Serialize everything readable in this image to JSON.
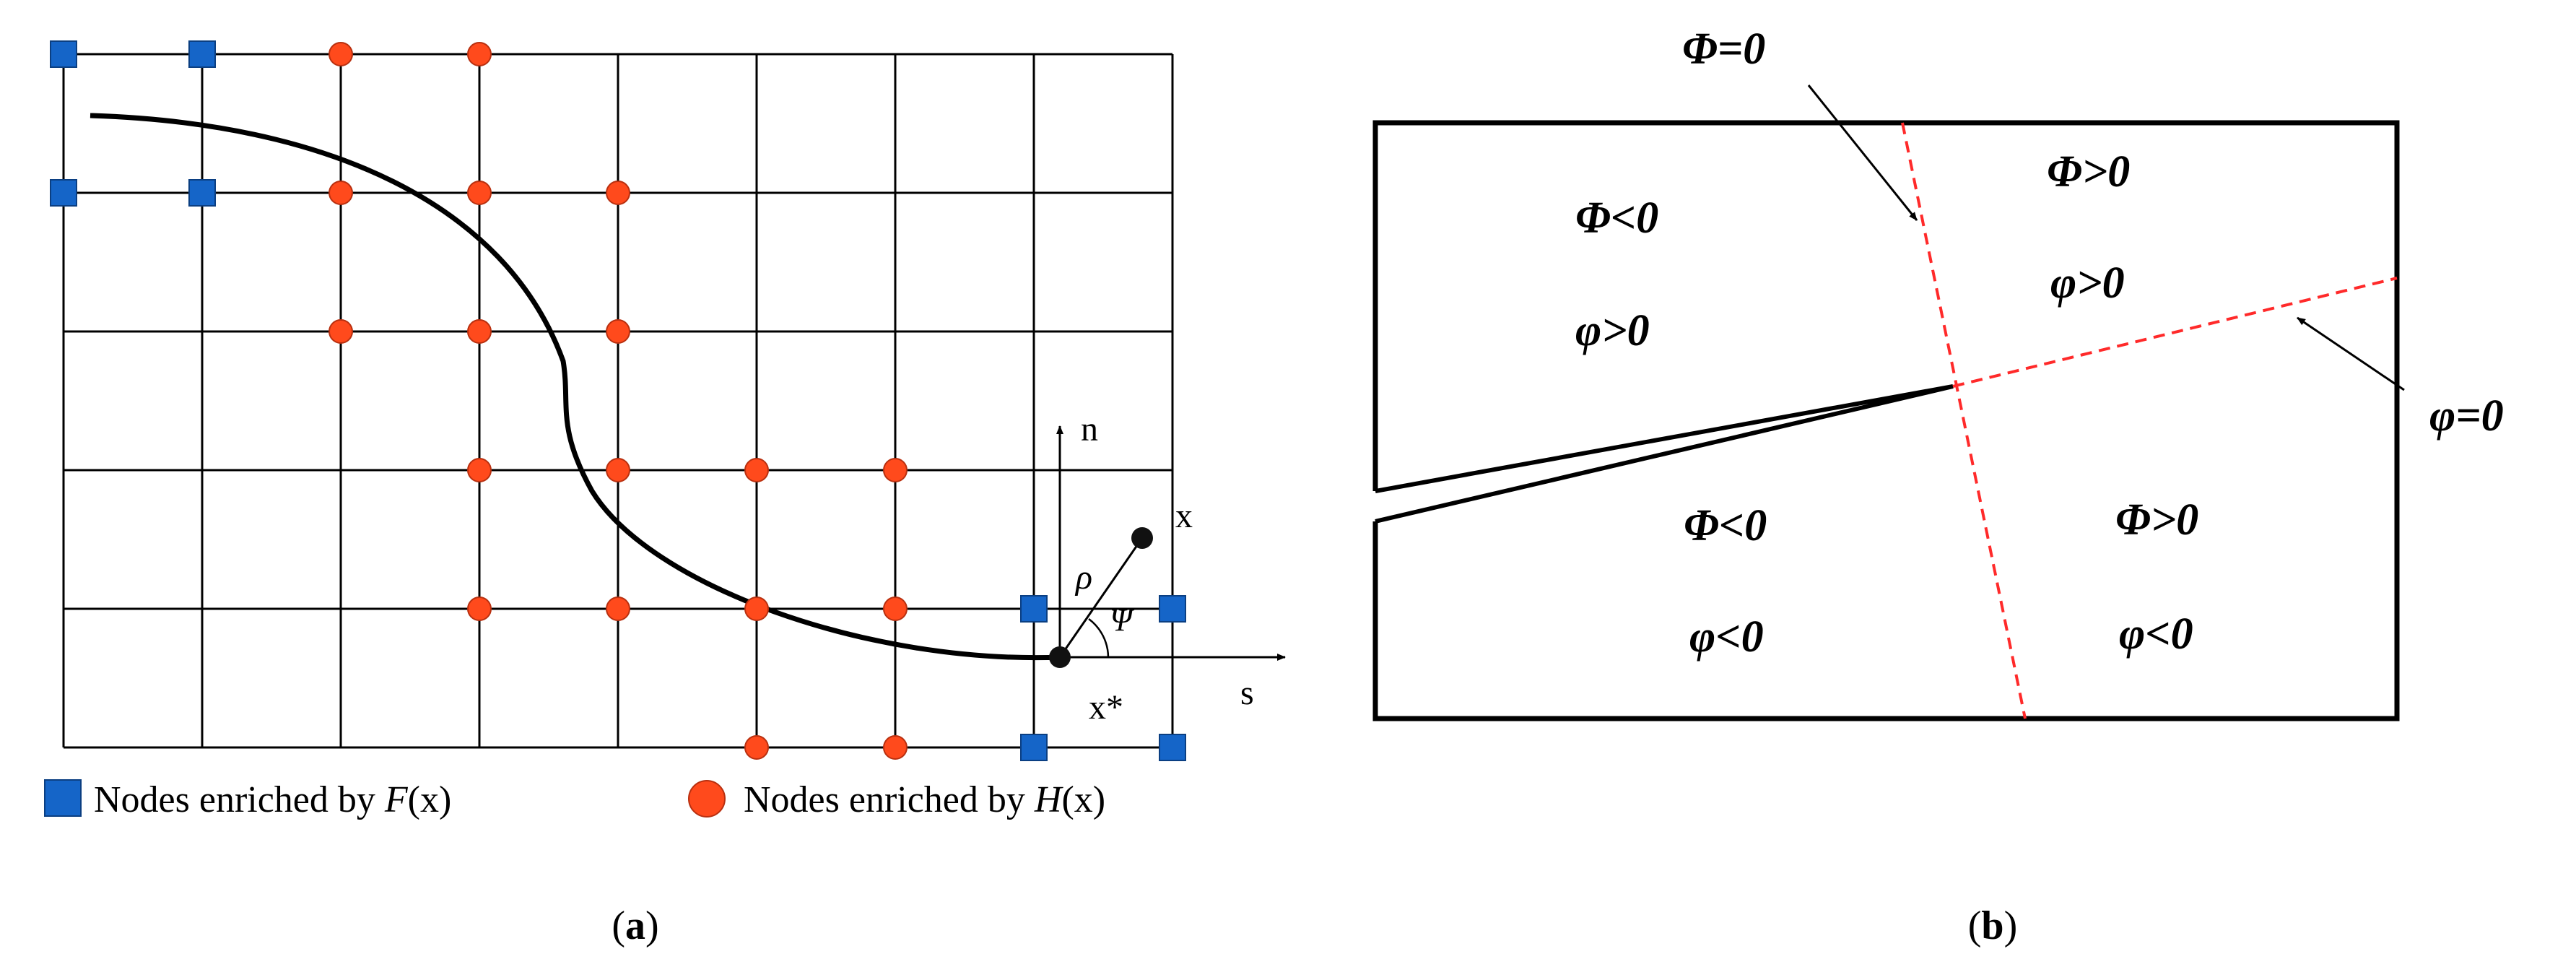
{
  "panel_a": {
    "caption_open": "(",
    "caption_letter": "a",
    "caption_close": ")",
    "label_n": "n",
    "label_s": "s",
    "label_x": "x",
    "label_xstar": "x*",
    "label_rho": "ρ",
    "label_psi": "Ψ",
    "legend": {
      "f_prefix": "Nodes enriched by ",
      "f_func": "F",
      "f_arg": "(x)",
      "h_prefix": "Nodes enriched by ",
      "h_func": "H",
      "h_arg": "(x)"
    },
    "colors": {
      "f_node": "#1565c8",
      "h_node": "#ff4a1c",
      "grid": "#000000"
    }
  },
  "panel_b": {
    "caption_open": "(",
    "caption_letter": "b",
    "caption_close": ")",
    "label_Phi_zero": "Φ=0",
    "label_phi_zero": "φ=0",
    "q_top_left_Phi": "Φ<0",
    "q_top_left_phi": "φ>0",
    "q_top_right_Phi": "Φ>0",
    "q_top_right_phi": "φ>0",
    "q_bottom_left_Phi": "Φ<0",
    "q_bottom_left_phi": "φ<0",
    "q_bottom_right_Phi": "Φ>0",
    "q_bottom_right_phi": "φ<0",
    "colors": {
      "level_set": "#ff2a2a"
    }
  }
}
